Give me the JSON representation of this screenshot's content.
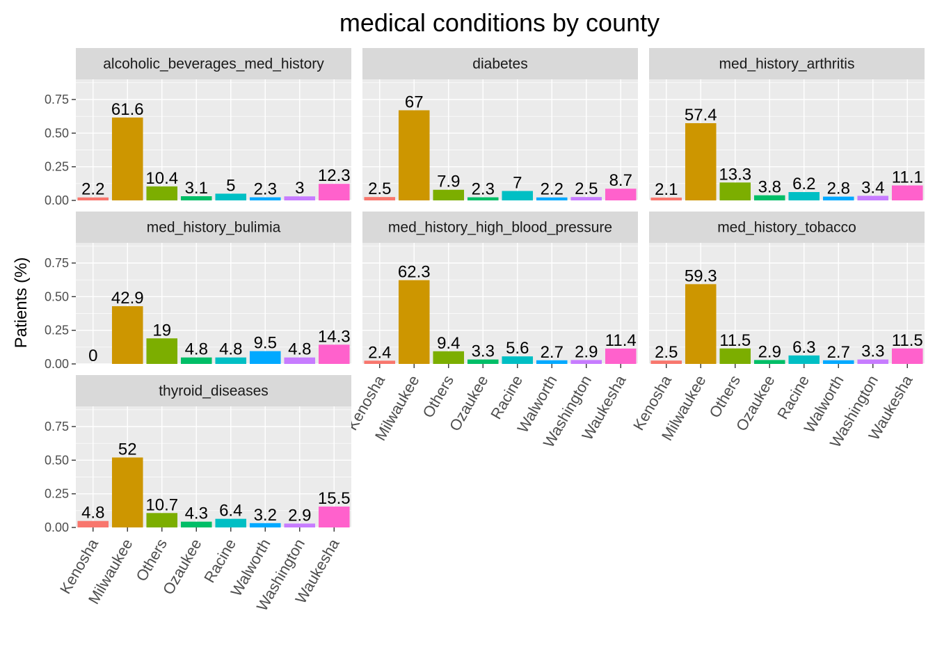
{
  "chart_data": {
    "type": "bar",
    "title": "medical conditions by county",
    "ylabel": "Patients (%)",
    "xlabel": "",
    "ylim": [
      0,
      0.9
    ],
    "yticks": [
      0,
      0.25,
      0.5,
      0.75
    ],
    "ytick_labels": [
      "0.00",
      "0.25",
      "0.50",
      "0.75"
    ],
    "grid": true,
    "legend": "none",
    "categories": [
      "Kenosha",
      "Milwaukee",
      "Others",
      "Ozaukee",
      "Racine",
      "Walworth",
      "Washington",
      "Waukesha"
    ],
    "colors": [
      "#F8766D",
      "#CD9600",
      "#7CAE00",
      "#00BE67",
      "#00BFC4",
      "#00A9FF",
      "#C77CFF",
      "#FF61CC"
    ],
    "panels": [
      {
        "name": "alcoholic_beverages_med_history",
        "values": [
          0.022,
          0.616,
          0.104,
          0.031,
          0.05,
          0.023,
          0.03,
          0.123
        ],
        "labels": [
          "2.2",
          "61.6",
          "10.4",
          "3.1",
          "5",
          "2.3",
          "3",
          "12.3"
        ]
      },
      {
        "name": "diabetes",
        "values": [
          0.025,
          0.67,
          0.079,
          0.023,
          0.07,
          0.022,
          0.025,
          0.087
        ],
        "labels": [
          "2.5",
          "67",
          "7.9",
          "2.3",
          "7",
          "2.2",
          "2.5",
          "8.7"
        ]
      },
      {
        "name": "med_history_arthritis",
        "values": [
          0.021,
          0.574,
          0.133,
          0.038,
          0.062,
          0.028,
          0.034,
          0.111
        ],
        "labels": [
          "2.1",
          "57.4",
          "13.3",
          "3.8",
          "6.2",
          "2.8",
          "3.4",
          "11.1"
        ]
      },
      {
        "name": "med_history_bulimia",
        "values": [
          0,
          0.429,
          0.19,
          0.048,
          0.048,
          0.095,
          0.048,
          0.143
        ],
        "labels": [
          "0",
          "42.9",
          "19",
          "4.8",
          "4.8",
          "9.5",
          "4.8",
          "14.3"
        ]
      },
      {
        "name": "med_history_high_blood_pressure",
        "values": [
          0.024,
          0.623,
          0.094,
          0.033,
          0.056,
          0.027,
          0.029,
          0.114
        ],
        "labels": [
          "2.4",
          "62.3",
          "9.4",
          "3.3",
          "5.6",
          "2.7",
          "2.9",
          "11.4"
        ]
      },
      {
        "name": "med_history_tobacco",
        "values": [
          0.025,
          0.593,
          0.115,
          0.029,
          0.063,
          0.027,
          0.033,
          0.115
        ],
        "labels": [
          "2.5",
          "59.3",
          "11.5",
          "2.9",
          "6.3",
          "2.7",
          "3.3",
          "11.5"
        ]
      },
      {
        "name": "thyroid_diseases",
        "values": [
          0.048,
          0.52,
          0.107,
          0.043,
          0.064,
          0.032,
          0.029,
          0.155
        ],
        "labels": [
          "4.8",
          "52",
          "10.7",
          "4.3",
          "6.4",
          "3.2",
          "2.9",
          "15.5"
        ]
      }
    ]
  }
}
